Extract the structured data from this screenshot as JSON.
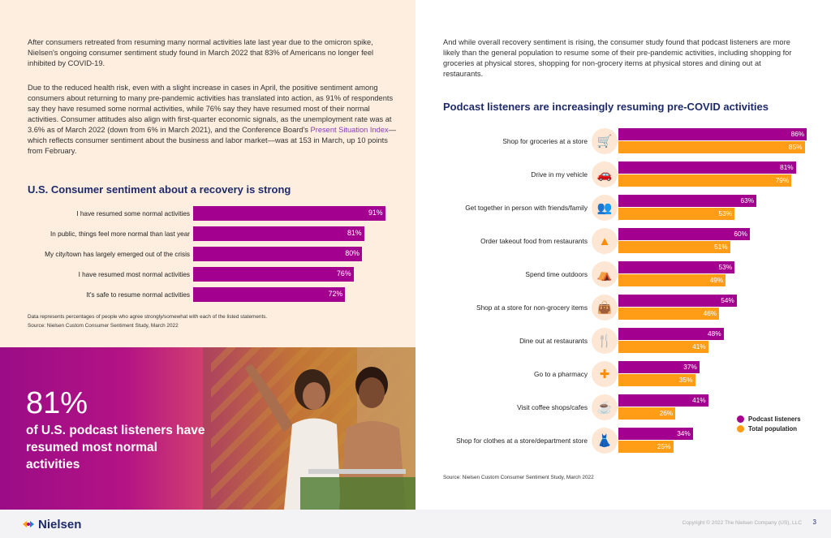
{
  "left": {
    "para1": "After consumers retreated from resuming many normal activities late last year due to the omicron spike, Nielsen's ongoing consumer sentiment study found in March 2022 that 83% of Americans no longer feel inhibited by COVID-19.",
    "para2_before_link": "Due to the reduced health risk, even with a slight increase in cases in April, the positive sentiment among consumers about returning to many pre-pandemic activities has translated into action, as 91% of respondents say they have resumed some normal activities, while 76% say they have resumed most of their normal activities. Consumer attitudes also align with first-quarter economic signals, as the unemployment rate was at 3.6% as of March 2022 (down from 6% in March 2021), and the Conference Board's ",
    "para2_link": "Present Situation Index",
    "para2_after_link": "—which reflects consumer sentiment about the business and labor market—was at 153 in March, up 10 points from February.",
    "chart_title": "U.S. Consumer sentiment about a recovery is strong",
    "note1": "Data represents percentages of people who agree strongly/somewhat with each of the listed statements.",
    "note2": "Source: Nielsen Custom Consumer Sentiment Study, March 2022"
  },
  "promo": {
    "stat": "81%",
    "text": "of U.S. podcast listeners have resumed most normal activities"
  },
  "right": {
    "para": "And while overall recovery sentiment is rising, the consumer study found that podcast listeners are more likely than the general population to resume some of their pre-pandemic activities, including shopping for groceries at physical stores, shopping for non-grocery items at physical stores and dining out at restaurants.",
    "chart_title": "Podcast listeners are increasingly resuming pre-COVID activities",
    "source": "Source: Nielsen Custom Consumer Sentiment Study, March 2022",
    "legend": [
      "Podcast listeners",
      "Total population"
    ]
  },
  "footer": {
    "logo": "Nielsen",
    "copyright": "Copyright © 2022 The Nielsen Company (US), LLC",
    "page": "3"
  },
  "colors": {
    "magenta": "#a4008f",
    "orange": "#ff9e16",
    "navy": "#1f2a6b"
  },
  "chart_data": [
    {
      "type": "bar",
      "orientation": "horizontal",
      "title": "U.S. Consumer sentiment about a recovery is strong",
      "categories": [
        "I have resumed some normal activities",
        "In public, things feel more normal than last year",
        "My city/town has largely emerged out of the crisis",
        "I have resumed most normal activities",
        "It's safe to resume normal activities"
      ],
      "values": [
        91,
        81,
        80,
        76,
        72
      ],
      "value_labels": [
        "91%",
        "81%",
        "80%",
        "76%",
        "72%"
      ],
      "xlim": [
        0,
        100
      ]
    },
    {
      "type": "bar",
      "orientation": "horizontal",
      "title": "Podcast listeners are increasingly resuming pre-COVID activities",
      "categories": [
        "Shop for groceries at a store",
        "Drive in my vehicle",
        "Get together in person with friends/family",
        "Order takeout food from restaurants",
        "Spend time outdoors",
        "Shop at a store for non-grocery items",
        "Dine out at restaurants",
        "Go to a pharmacy",
        "Visit coffee shops/cafes",
        "Shop for clothes at a store/department store"
      ],
      "icons": [
        "cart-icon",
        "car-icon",
        "people-icon",
        "tree-icon",
        "outdoor-icon",
        "bag-icon",
        "dining-icon",
        "pharmacy-icon",
        "coffee-icon",
        "dress-icon"
      ],
      "series": [
        {
          "name": "Podcast listeners",
          "values": [
            86,
            81,
            63,
            60,
            53,
            54,
            48,
            37,
            41,
            34
          ],
          "labels": [
            "86%",
            "81%",
            "63%",
            "60%",
            "53%",
            "54%",
            "48%",
            "37%",
            "41%",
            "34%"
          ]
        },
        {
          "name": "Total population",
          "values": [
            85,
            79,
            53,
            51,
            49,
            46,
            41,
            35,
            26,
            25
          ],
          "labels": [
            "85%",
            "79%",
            "53%",
            "51%",
            "49%",
            "46%",
            "41%",
            "35%",
            "26%",
            "25%"
          ]
        }
      ],
      "xlim": [
        0,
        100
      ],
      "legend": "right"
    }
  ]
}
